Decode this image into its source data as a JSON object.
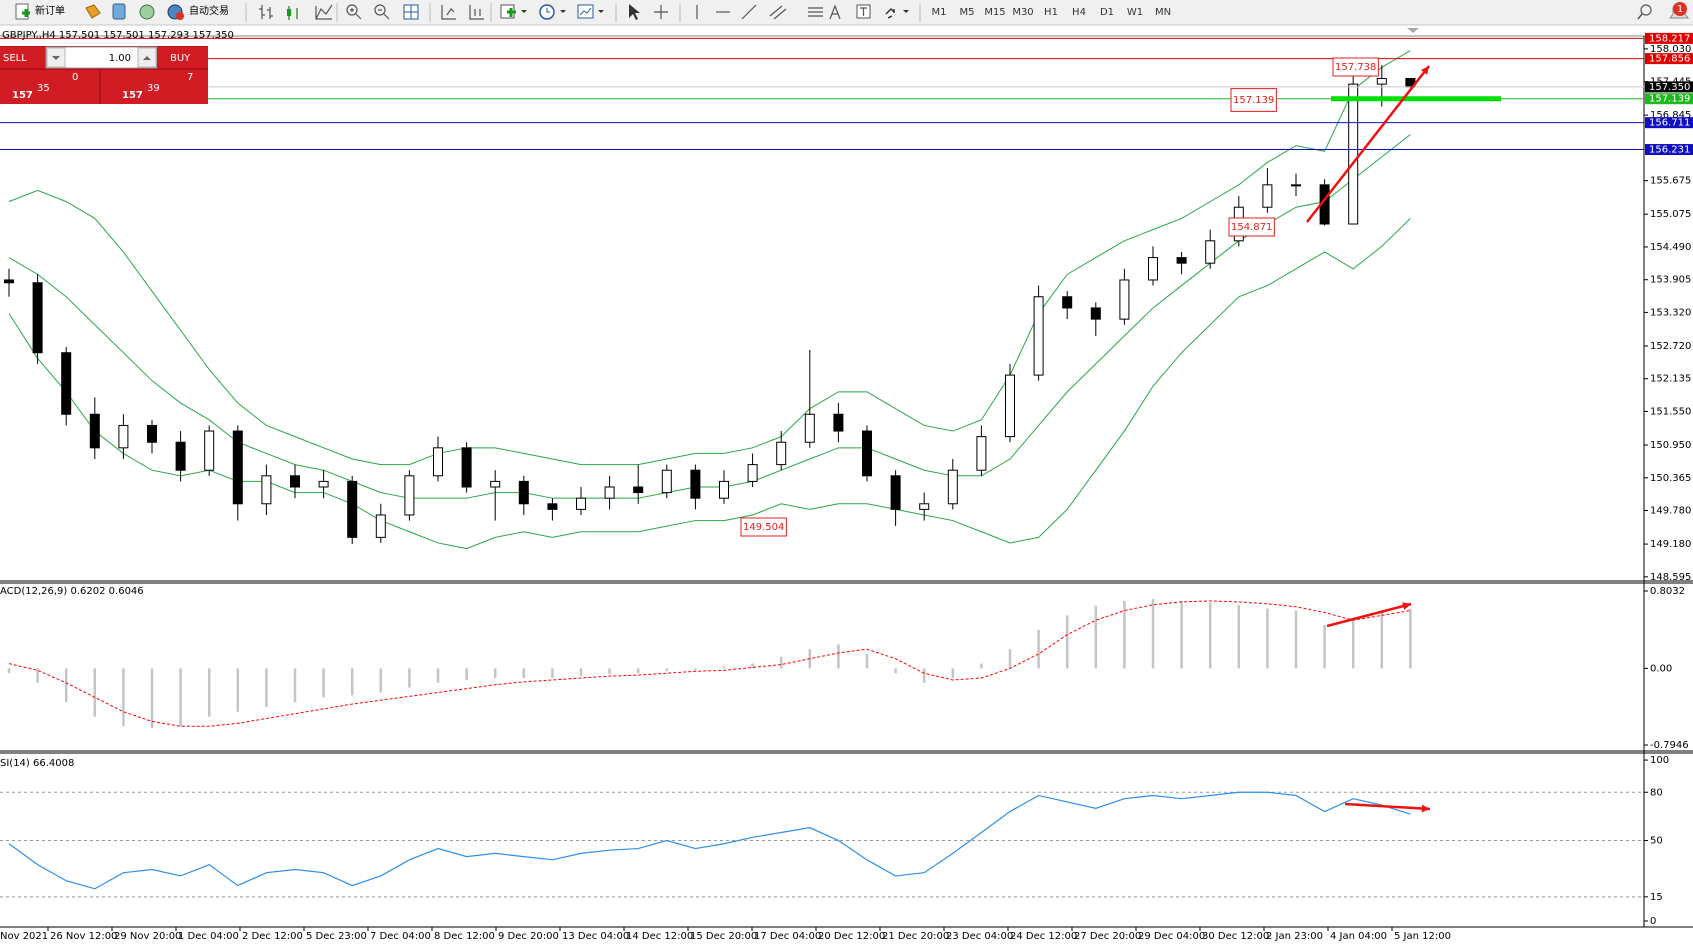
{
  "toolbar": {
    "new_order": "新订单",
    "auto_trade": "自动交易",
    "timeframes": [
      "M1",
      "M5",
      "M15",
      "M30",
      "H1",
      "H4",
      "D1",
      "W1",
      "MN"
    ],
    "alerts": "1"
  },
  "trade_panel": {
    "sell": "SELL",
    "buy": "BUY",
    "lot": "1.00",
    "bid_big": "157",
    "bid_main": "35",
    "bid_frac": "0",
    "ask_big": "157",
    "ask_main": "39",
    "ask_frac": "7"
  },
  "main_chart": {
    "header": "GBPJPY.,H4  157.501 157.501 157.293 157.350",
    "ylim": [
      148.52,
      158.26
    ],
    "yticks": [
      {
        "value": 158.03,
        "label": "158.030"
      },
      157.445,
      156.845,
      155.675,
      {
        "value": 155.075,
        "label": "155.075"
      },
      {
        "value": 154.49,
        "label": "154.490"
      },
      153.905,
      {
        "value": 153.32,
        "label": "153.320"
      },
      {
        "value": 152.72,
        "label": "152.720"
      },
      152.135,
      {
        "value": 151.55,
        "label": "151.550"
      },
      {
        "value": 150.95,
        "label": "150.950"
      },
      150.365,
      {
        "value": 149.78,
        "label": "149.780"
      },
      {
        "value": 149.18,
        "label": "149.180"
      },
      148.595
    ],
    "open": [
      153.9,
      153.85,
      152.6,
      151.5,
      150.9,
      151.3,
      151.0,
      150.5,
      151.2,
      149.9,
      150.4,
      150.2,
      150.3,
      149.3,
      149.7,
      150.4,
      150.9,
      150.2,
      150.3,
      149.9,
      149.8,
      150.0,
      150.2,
      150.1,
      150.5,
      150.0,
      150.3,
      150.6,
      151.0,
      151.5,
      151.2,
      150.4,
      149.8,
      149.9,
      150.5,
      151.1,
      152.2,
      153.6,
      153.4,
      153.2,
      153.9,
      154.3,
      154.2,
      154.6,
      155.2,
      155.6,
      155.6,
      154.9,
      157.4,
      157.501
    ],
    "high": [
      154.1,
      154.0,
      152.7,
      151.8,
      151.5,
      151.4,
      151.2,
      151.3,
      151.3,
      150.6,
      150.6,
      150.5,
      150.4,
      149.9,
      150.5,
      151.1,
      151.0,
      150.5,
      150.4,
      150.0,
      150.2,
      150.4,
      150.6,
      150.6,
      150.6,
      150.5,
      150.8,
      151.2,
      152.65,
      151.7,
      151.3,
      150.5,
      150.1,
      150.7,
      151.3,
      152.4,
      153.8,
      153.7,
      153.5,
      154.1,
      154.5,
      154.4,
      154.8,
      155.4,
      155.9,
      155.8,
      155.7,
      157.6,
      157.738,
      157.501
    ],
    "low": [
      153.6,
      152.4,
      151.3,
      150.7,
      150.7,
      150.8,
      150.3,
      150.4,
      149.6,
      149.7,
      150.0,
      150.0,
      149.18,
      149.2,
      149.6,
      150.3,
      150.1,
      149.6,
      149.7,
      149.6,
      149.7,
      149.8,
      149.9,
      150.0,
      149.8,
      149.9,
      150.2,
      150.5,
      150.9,
      151.0,
      150.3,
      149.504,
      149.6,
      149.8,
      150.4,
      151.0,
      152.1,
      153.2,
      152.9,
      153.1,
      153.8,
      154.0,
      154.1,
      154.5,
      155.1,
      155.4,
      154.871,
      154.9,
      157.0,
      157.293
    ],
    "close": [
      153.85,
      152.6,
      151.5,
      150.9,
      151.3,
      151.0,
      150.5,
      151.2,
      149.9,
      150.4,
      150.2,
      150.3,
      149.3,
      149.7,
      150.4,
      150.9,
      150.2,
      150.3,
      149.9,
      149.8,
      150.0,
      150.2,
      150.1,
      150.5,
      150.0,
      150.3,
      150.6,
      151.0,
      151.5,
      151.2,
      150.4,
      149.8,
      149.9,
      150.5,
      151.1,
      152.2,
      153.6,
      153.4,
      153.2,
      153.9,
      154.3,
      154.2,
      154.6,
      155.2,
      155.6,
      155.6,
      154.9,
      157.4,
      157.5,
      157.35
    ],
    "bands_color": "#2aa64a",
    "bands": {
      "upper": [
        155.3,
        155.5,
        155.3,
        155.0,
        154.4,
        153.7,
        153.0,
        152.3,
        151.7,
        151.3,
        151.1,
        150.9,
        150.7,
        150.6,
        150.6,
        150.8,
        150.9,
        150.9,
        150.8,
        150.7,
        150.6,
        150.6,
        150.6,
        150.7,
        150.8,
        150.8,
        150.9,
        151.1,
        151.6,
        151.9,
        151.9,
        151.6,
        151.3,
        151.2,
        151.4,
        152.2,
        153.3,
        154.0,
        154.3,
        154.6,
        154.8,
        155.0,
        155.3,
        155.6,
        156.0,
        156.3,
        156.2,
        157.3,
        157.7,
        158.0
      ],
      "middle": [
        154.3,
        154.0,
        153.6,
        153.1,
        152.6,
        152.1,
        151.7,
        151.4,
        151.0,
        150.8,
        150.6,
        150.5,
        150.3,
        150.1,
        150.0,
        150.0,
        150.0,
        150.1,
        150.1,
        150.0,
        150.0,
        150.0,
        150.0,
        150.1,
        150.2,
        150.2,
        150.3,
        150.5,
        150.7,
        150.9,
        150.9,
        150.7,
        150.5,
        150.4,
        150.4,
        150.7,
        151.3,
        151.9,
        152.4,
        152.9,
        153.4,
        153.8,
        154.2,
        154.6,
        154.9,
        155.2,
        155.3,
        155.7,
        156.1,
        156.5
      ],
      "lower": [
        153.3,
        152.5,
        151.9,
        151.2,
        150.8,
        150.5,
        150.4,
        150.5,
        150.3,
        150.3,
        150.1,
        150.1,
        149.9,
        149.6,
        149.4,
        149.2,
        149.1,
        149.3,
        149.4,
        149.3,
        149.4,
        149.4,
        149.4,
        149.5,
        149.6,
        149.6,
        149.7,
        149.9,
        149.8,
        149.9,
        149.9,
        149.8,
        149.7,
        149.6,
        149.4,
        149.2,
        149.3,
        149.8,
        150.5,
        151.2,
        152.0,
        152.6,
        153.1,
        153.6,
        153.8,
        154.1,
        154.4,
        154.1,
        154.5,
        155.0
      ]
    },
    "levels": [
      {
        "value": 158.217,
        "label": "158.217",
        "color": "#e00000",
        "line_color": "#e00000"
      },
      {
        "value": 157.856,
        "label": "157.856",
        "color": "#e00000",
        "line_color": "#e00000"
      },
      {
        "value": 157.35,
        "label": "157.350",
        "color": "#000000",
        "line_color": "#c8c8c8"
      },
      {
        "value": 157.139,
        "label": "157.139",
        "color": "#1fb81f",
        "line_color": "#1fb81f"
      },
      {
        "value": 156.711,
        "label": "156.711",
        "color": "#1010c0",
        "line_color": "#1010c0"
      },
      {
        "value": 156.231,
        "label": "156.231",
        "color": "#1010c0",
        "line_color": "#1010c0"
      }
    ],
    "annotations": [
      {
        "value": 157.139,
        "label": "157.139"
      },
      {
        "value": 157.738,
        "label": "157.738"
      },
      {
        "value": 154.871,
        "label": "154.871"
      },
      {
        "value": 149.504,
        "label": "149.504"
      }
    ]
  },
  "macd": {
    "label": "ACD(12,26,9) 0.6202 0.6046",
    "ylim": [
      -0.857,
      0.886
    ],
    "yticks": [
      0.8032,
      {
        "value": 0,
        "label": "0.00"
      },
      -0.7946
    ],
    "histogram_color": "#c4c4c4",
    "signal_color": "#ff0000",
    "histogram": [
      -0.05,
      -0.15,
      -0.35,
      -0.5,
      -0.6,
      -0.62,
      -0.6,
      -0.5,
      -0.45,
      -0.4,
      -0.35,
      -0.3,
      -0.28,
      -0.25,
      -0.2,
      -0.15,
      -0.12,
      -0.1,
      -0.1,
      -0.1,
      -0.08,
      -0.06,
      -0.05,
      -0.03,
      -0.02,
      0.02,
      0.05,
      0.12,
      0.2,
      0.25,
      0.15,
      -0.05,
      -0.15,
      -0.1,
      0.05,
      0.2,
      0.4,
      0.55,
      0.65,
      0.7,
      0.72,
      0.7,
      0.68,
      0.66,
      0.62,
      0.6,
      0.45,
      0.5,
      0.58,
      0.62
    ],
    "signal": [
      0.05,
      -0.02,
      -0.15,
      -0.3,
      -0.45,
      -0.55,
      -0.6,
      -0.6,
      -0.57,
      -0.52,
      -0.47,
      -0.42,
      -0.37,
      -0.33,
      -0.29,
      -0.25,
      -0.21,
      -0.17,
      -0.14,
      -0.12,
      -0.1,
      -0.08,
      -0.07,
      -0.05,
      -0.03,
      -0.02,
      0.01,
      0.04,
      0.1,
      0.16,
      0.2,
      0.1,
      -0.05,
      -0.12,
      -0.1,
      0.0,
      0.15,
      0.35,
      0.5,
      0.6,
      0.66,
      0.69,
      0.7,
      0.69,
      0.67,
      0.64,
      0.58,
      0.5,
      0.55,
      0.6
    ]
  },
  "rsi": {
    "label": "SI(14) 66.4008",
    "ylim": [
      -3.75,
      104.4
    ],
    "yticks": [
      100,
      80,
      50,
      15,
      0
    ],
    "color": "#2e8fe8",
    "values": [
      48,
      35,
      25,
      20,
      30,
      32,
      28,
      35,
      22,
      30,
      32,
      30,
      22,
      28,
      38,
      45,
      40,
      42,
      40,
      38,
      42,
      44,
      45,
      50,
      45,
      48,
      52,
      55,
      58,
      50,
      38,
      28,
      30,
      42,
      55,
      68,
      78,
      74,
      70,
      76,
      78,
      76,
      78,
      80,
      80,
      78,
      68,
      76,
      72,
      66.4
    ]
  },
  "x_labels": [
    "Nov 2021",
    "26 Nov 12:00",
    "29 Nov 20:00",
    "1 Dec 04:00",
    "2 Dec 12:00",
    "5 Dec 23:00",
    "7 Dec 04:00",
    "8 Dec 12:00",
    "9 Dec 20:00",
    "13 Dec 04:00",
    "14 Dec 12:00",
    "15 Dec 20:00",
    "17 Dec 04:00",
    "20 Dec 12:00",
    "21 Dec 20:00",
    "23 Dec 04:00",
    "24 Dec 12:00",
    "27 Dec 20:00",
    "29 Dec 04:00",
    "30 Dec 12:00",
    "2 Jan 23:00",
    "4 Jan 04:00",
    "5 Jan 12:00"
  ]
}
